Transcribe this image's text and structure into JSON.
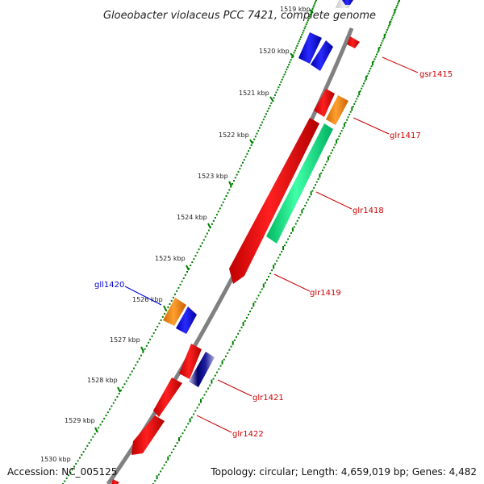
{
  "title": "Gloeobacter violaceus PCC 7421, complete genome",
  "ticks": [
    "1519 kbp",
    "1520 kbp",
    "1521 kbp",
    "1522 kbp",
    "1523 kbp",
    "1524 kbp",
    "1525 kbp",
    "1526 kbp",
    "1527 kbp",
    "1528 kbp",
    "1529 kbp",
    "1530 kbp"
  ],
  "genes": [
    {
      "name": "",
      "strand": "reverse",
      "color": "#808080"
    },
    {
      "name": "",
      "strand": "reverse",
      "color": "#0000ee"
    },
    {
      "name": "",
      "strand": "reverse",
      "color": "#0000ee"
    },
    {
      "name": "gsr1415",
      "strand": "forward",
      "color": "#ff0000"
    },
    {
      "name": "",
      "strand": "forward",
      "color": "#ff0000"
    },
    {
      "name": "glr1417",
      "strand": "forward",
      "color": "#ff8c00"
    },
    {
      "name": "glr1418",
      "strand": "forward",
      "color": "#00ee88"
    },
    {
      "name": "glr1419",
      "strand": "forward",
      "color": "#ff0000"
    },
    {
      "name": "gll1420",
      "strand": "reverse",
      "color": "#ff8c00"
    },
    {
      "name": "",
      "strand": "reverse",
      "color": "#0000ee"
    },
    {
      "name": "",
      "strand": "forward",
      "color": "#ff0000"
    },
    {
      "name": "glr1421",
      "strand": "forward",
      "color": "#000080"
    },
    {
      "name": "glr1422",
      "strand": "forward",
      "color": "#ff0000"
    }
  ],
  "colors": {
    "backbone": "#808080",
    "tick_outer": "#008000",
    "tick_inner": "#008000",
    "forward_label": "#cc0000",
    "reverse_label": "#0000cc"
  },
  "footer": {
    "accession": "Accession: NC_005125",
    "topology": "Topology: circular; Length: 4,659,019 bp; Genes: 4,482"
  }
}
